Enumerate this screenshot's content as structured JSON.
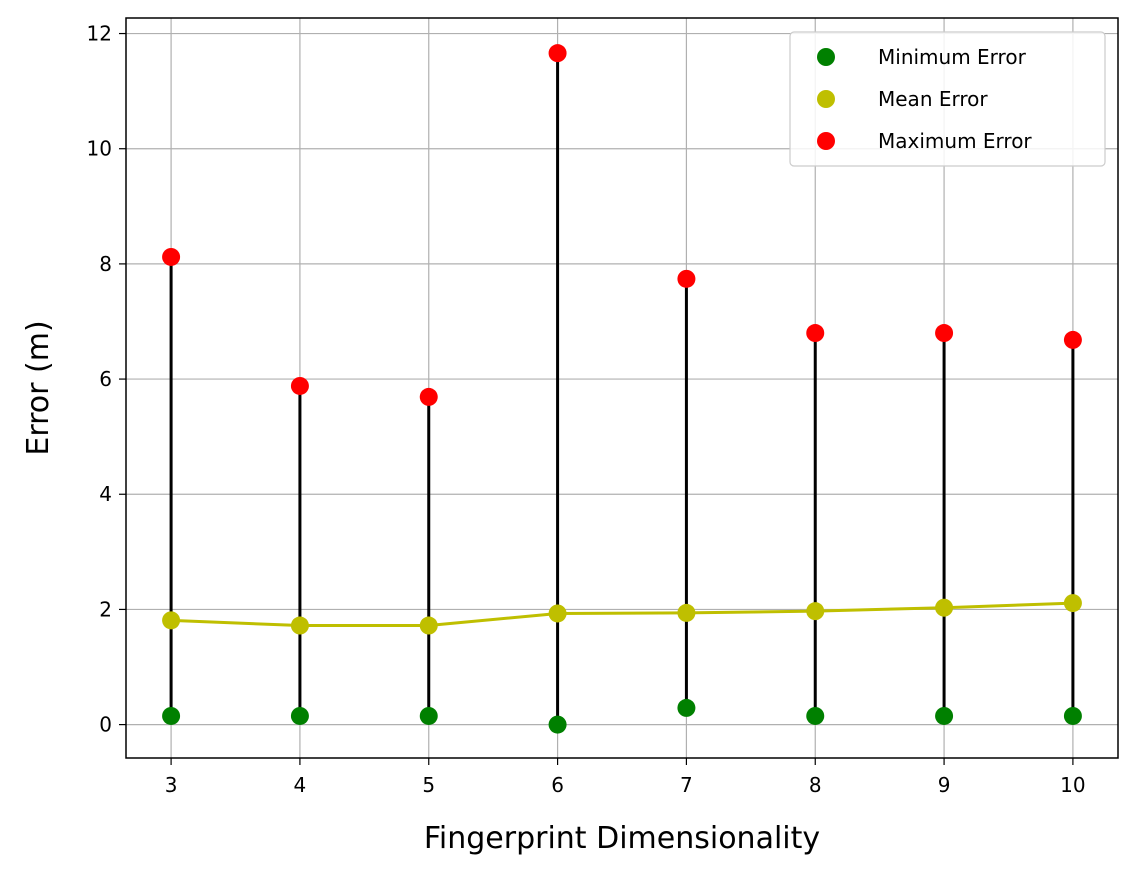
{
  "chart_data": {
    "type": "scatter",
    "title": "",
    "xlabel": "Fingerprint Dimensionality",
    "ylabel": "Error (m)",
    "x": [
      3,
      4,
      5,
      6,
      7,
      8,
      9,
      10
    ],
    "xticks": [
      "3",
      "4",
      "5",
      "6",
      "7",
      "8",
      "9",
      "10"
    ],
    "yticks": [
      "0",
      "2",
      "4",
      "6",
      "8",
      "10",
      "12"
    ],
    "xlim": [
      2.65,
      10.35
    ],
    "ylim": [
      -0.58,
      12.27
    ],
    "grid": true,
    "legend_position": "top-right",
    "error_bar_color": "#000000",
    "series": [
      {
        "name": "Minimum Error",
        "color": "#008000",
        "marker": "circle",
        "line": false,
        "values": [
          0.15,
          0.15,
          0.15,
          0.0,
          0.29,
          0.15,
          0.15,
          0.15
        ]
      },
      {
        "name": "Mean Error",
        "color": "#bfbf00",
        "marker": "circle",
        "line": true,
        "values": [
          1.81,
          1.72,
          1.72,
          1.93,
          1.94,
          1.97,
          2.03,
          2.11
        ]
      },
      {
        "name": "Maximum Error",
        "color": "#ff0000",
        "marker": "circle",
        "line": false,
        "values": [
          8.12,
          5.88,
          5.69,
          11.66,
          7.74,
          6.8,
          6.8,
          6.68
        ]
      }
    ]
  }
}
